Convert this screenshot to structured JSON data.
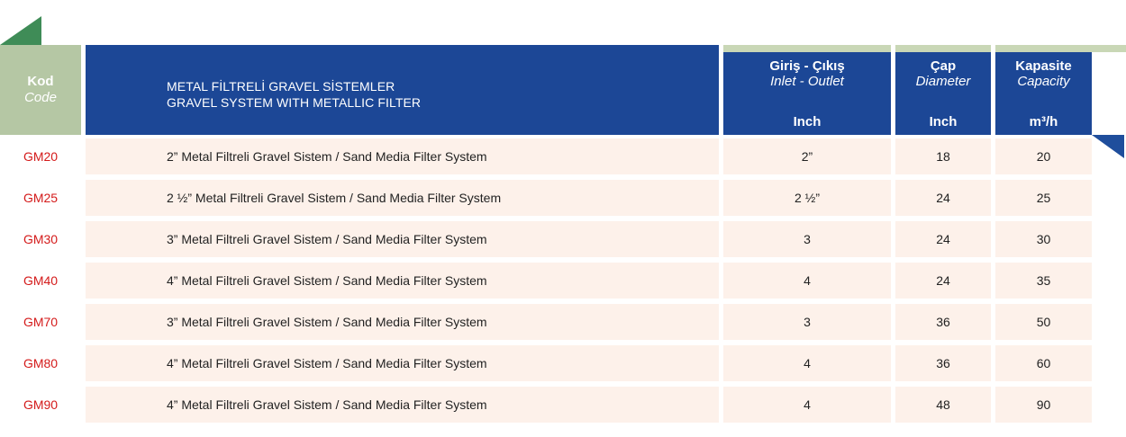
{
  "header": {
    "code_label": "Kod",
    "code_label_en": "Code",
    "title_line1": "METAL FİLTRELİ GRAVEL SİSTEMLER",
    "title_line2": "GRAVEL SYSTEM WITH METALLIC FILTER",
    "inlet_label": "Giriş - Çıkış",
    "inlet_label_en": "Inlet - Outlet",
    "inlet_unit": "Inch",
    "diameter_label": "Çap",
    "diameter_label_en": "Diameter",
    "diameter_unit": "Inch",
    "capacity_label": "Kapasite",
    "capacity_label_en": "Capacity",
    "capacity_unit": "m³/h"
  },
  "rows": [
    {
      "code": "GM20",
      "description": "2” Metal Filtreli Gravel Sistem / Sand Media Filter System",
      "inlet": "2”",
      "diameter": "18",
      "capacity": "20"
    },
    {
      "code": "GM25",
      "description": "2 ½” Metal Filtreli Gravel Sistem / Sand Media Filter System",
      "inlet": "2 ½”",
      "diameter": "24",
      "capacity": "25"
    },
    {
      "code": "GM30",
      "description": "3” Metal Filtreli Gravel Sistem / Sand Media Filter System",
      "inlet": "3",
      "diameter": "24",
      "capacity": "30"
    },
    {
      "code": "GM40",
      "description": "4” Metal Filtreli Gravel Sistem / Sand Media Filter System",
      "inlet": "4",
      "diameter": "24",
      "capacity": "35"
    },
    {
      "code": "GM70",
      "description": "3” Metal Filtreli Gravel Sistem / Sand Media Filter System",
      "inlet": "3",
      "diameter": "36",
      "capacity": "50"
    },
    {
      "code": "GM80",
      "description": "4” Metal Filtreli Gravel Sistem / Sand Media Filter System",
      "inlet": "4",
      "diameter": "36",
      "capacity": "60"
    },
    {
      "code": "GM90",
      "description": "4” Metal Filtreli Gravel Sistem / Sand Media Filter System",
      "inlet": "4",
      "diameter": "48",
      "capacity": "90"
    }
  ],
  "colors": {
    "header_blue": "#1c4796",
    "header_green": "#b5c7a4",
    "row_background": "#fdf1ea",
    "code_red": "#d41a1a"
  }
}
